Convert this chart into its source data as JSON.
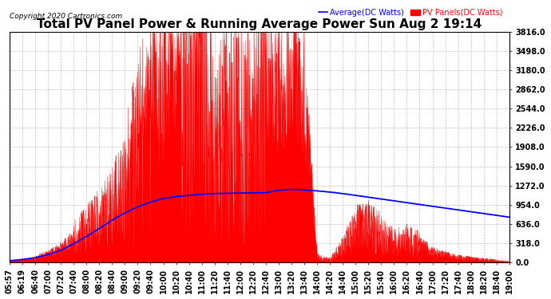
{
  "title": "Total PV Panel Power & Running Average Power Sun Aug 2 19:14",
  "copyright": "Copyright 2020 Cartronics.com",
  "legend_avg": "Average(DC Watts)",
  "legend_pv": "PV Panels(DC Watts)",
  "yticks": [
    0.0,
    318.0,
    636.0,
    954.0,
    1272.0,
    1590.0,
    1908.0,
    2226.0,
    2544.0,
    2862.0,
    3180.0,
    3498.0,
    3816.0
  ],
  "ymax": 3816.0,
  "ymin": 0.0,
  "bg_color": "#ffffff",
  "grid_color": "#b0b0b0",
  "pv_fill_color": "#ff0000",
  "avg_line_color": "#0000ff",
  "title_fontsize": 11,
  "tick_fontsize": 7,
  "xtick_labels": [
    "05:57",
    "06:19",
    "06:40",
    "07:00",
    "07:20",
    "07:40",
    "08:00",
    "08:20",
    "08:40",
    "09:00",
    "09:20",
    "09:40",
    "10:00",
    "10:20",
    "10:40",
    "11:00",
    "11:20",
    "11:40",
    "12:00",
    "12:20",
    "12:40",
    "13:00",
    "13:20",
    "13:40",
    "14:00",
    "14:20",
    "14:40",
    "15:00",
    "15:20",
    "15:40",
    "16:00",
    "16:20",
    "16:40",
    "17:00",
    "17:20",
    "17:40",
    "18:00",
    "18:20",
    "18:40",
    "19:00"
  ],
  "hour_start": 5.95,
  "hour_end": 19.0
}
